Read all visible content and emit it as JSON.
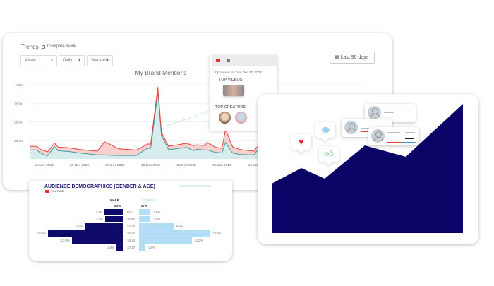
{
  "trends": {
    "title": "Trends",
    "compare_mode_label": "Compare mode",
    "compare_mode_checked": false,
    "metric_select": "Views",
    "interval_select": "Daily",
    "mode_select": "Stacked",
    "date_range_button": "Last 90 days",
    "colors": {
      "top_series": "#e8413c",
      "top_fill": "#f8d0ce",
      "bottom_series": "#3e9aa0",
      "bottom_fill": "#d7ecec"
    }
  },
  "chart_data": {
    "type": "area",
    "stacked": true,
    "title": "My Brand Mentions",
    "xlabel": "",
    "ylabel": "",
    "xlim": [
      "2022-11-12",
      "2023-01-15"
    ],
    "ylim": [
      0,
      100000
    ],
    "yticks": [
      "25.0K",
      "50.0K",
      "75.0K",
      "100K"
    ],
    "ytick_values": [
      25000,
      50000,
      75000,
      100000
    ],
    "xticks": [
      "16 Nov 2022",
      "26 Nov 2022",
      "06 Dec 2022",
      "16 Dec 2022",
      "26 Dec 2022",
      "05 Jan 2023",
      "15 Jan 2023"
    ],
    "xtick_dates": [
      "2022-11-16",
      "2022-11-26",
      "2022-12-06",
      "2022-12-16",
      "2022-12-26",
      "2023-01-05",
      "2023-01-15"
    ],
    "grid": true,
    "x": [
      "2022-11-12",
      "2022-11-14",
      "2022-11-15",
      "2022-11-17",
      "2022-11-19",
      "2022-11-20",
      "2022-11-23",
      "2022-11-26",
      "2022-12-01",
      "2022-12-03",
      "2022-12-04",
      "2022-12-07",
      "2022-12-12",
      "2022-12-14",
      "2022-12-15",
      "2022-12-16",
      "2022-12-18",
      "2022-12-19",
      "2022-12-21",
      "2022-12-26",
      "2022-12-28",
      "2022-12-29",
      "2022-12-31",
      "2023-01-01",
      "2023-01-03",
      "2023-01-05",
      "2023-01-06",
      "2023-01-08",
      "2023-01-10",
      "2023-01-14",
      "2023-01-15"
    ],
    "series": [
      {
        "color": "#3e9aa0",
        "values": [
          12000,
          12000,
          8000,
          4000,
          16500,
          11000,
          10000,
          8000,
          5500,
          5500,
          5000,
          4700,
          4700,
          11000,
          14000,
          14500,
          90000,
          32000,
          12400,
          15500,
          11000,
          13000,
          12000,
          12000,
          9000,
          8000,
          22000,
          8000,
          6000,
          5500,
          12000
        ]
      },
      {
        "color": "#e8413c",
        "values": [
          5000,
          5000,
          5000,
          5500,
          4500,
          5000,
          5000,
          4700,
          5000,
          17500,
          16000,
          8900,
          7300,
          6000,
          6000,
          5500,
          7000,
          4000,
          4600,
          5500,
          7000,
          6000,
          6000,
          10000,
          7000,
          6000,
          18000,
          8000,
          6700,
          5000,
          5000
        ]
      }
    ]
  },
  "popup": {
    "tabs": [
      {
        "icon": "youtube-icon"
      },
      {
        "icon": "facebook-icon"
      }
    ],
    "subtitle": "Top Videos on Tue, Dec 20, 2022",
    "top_videos_label": "TOP VIDEOS",
    "top_creators_label": "TOP CREATORS"
  },
  "demographics": {
    "title": "AUDIENCE DEMOGRAPHICS (GENDER & AGE)",
    "source": "YOUTUBE",
    "male_label": "MALE",
    "female_label": "FEMALE",
    "male_total": "53%",
    "female_total": "47%",
    "male_color": "#0d0a6b",
    "female_color": "#b3dcf5",
    "rows": [
      {
        "age": "55+",
        "male": 4.7,
        "male_label": "4.7%",
        "female": 2.9,
        "female_label": "2.9%"
      },
      {
        "age": "45-55",
        "male": 4.6,
        "male_label": "4.6%",
        "female": 2.9,
        "female_label": "2.9%"
      },
      {
        "age": "34-44",
        "male": 9.5,
        "male_label": "9.5%",
        "female": 8.6,
        "female_label": "8.6%"
      },
      {
        "age": "25-34",
        "male": 18.9,
        "male_label": "18.9%",
        "female": 17.8,
        "female_label": "17.8%"
      },
      {
        "age": "18-24",
        "male": 13.0,
        "male_label": "13.0%",
        "female": 13.2,
        "female_label": "13.2%"
      },
      {
        "age": "13-17",
        "male": 1.8,
        "male_label": "1.8%",
        "female": 1.6,
        "female_label": "1.6%"
      }
    ]
  },
  "growth_card": {
    "area_color": "#0b0466",
    "icons": [
      "heart-icon",
      "comment-icon",
      "thumbs-up-icon",
      "user-icon"
    ]
  }
}
